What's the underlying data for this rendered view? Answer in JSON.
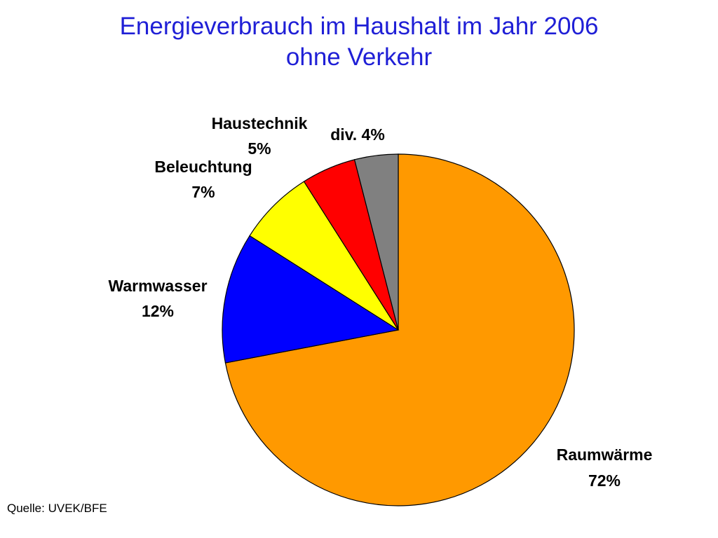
{
  "chart_data": {
    "type": "pie",
    "title_line1": "Energieverbrauch im Haushalt im Jahr 2006",
    "title_line2": "ohne Verkehr",
    "slices": [
      {
        "name": "Raumwärme",
        "value": 72,
        "label": "72%",
        "color": "#ff9900"
      },
      {
        "name": "Warmwasser",
        "value": 12,
        "label": "12%",
        "color": "#0000ff"
      },
      {
        "name": "Beleuchtung",
        "value": 7,
        "label": "7%",
        "color": "#ffff00"
      },
      {
        "name": "Haustechnik",
        "value": 5,
        "label": "5%",
        "color": "#ff0000"
      },
      {
        "name": "div.",
        "value": 4,
        "label": "4%",
        "color": "#808080"
      }
    ],
    "start_position": "12 o'clock",
    "direction": "clockwise"
  },
  "source_text": "Quelle: UVEK/BFE"
}
